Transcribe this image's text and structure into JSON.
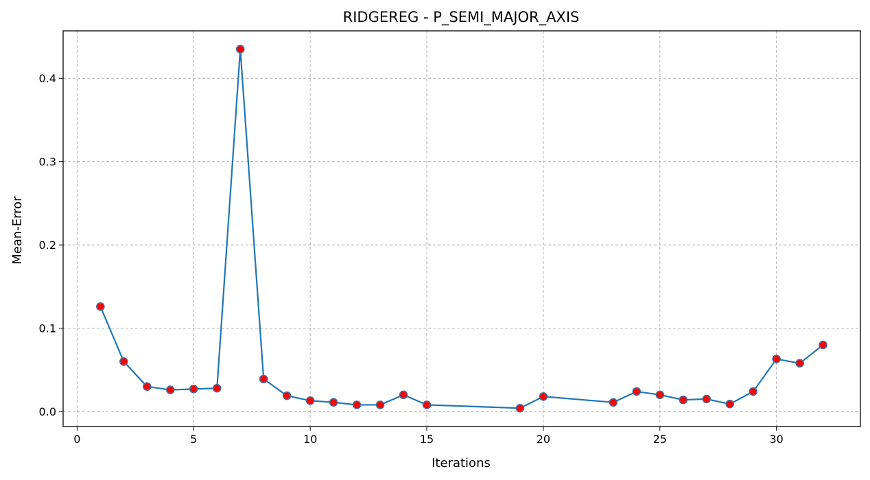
{
  "chart_data": {
    "type": "line",
    "title": "RIDGEREG - P_SEMI_MAJOR_AXIS",
    "xlabel": "Iterations",
    "ylabel": "Mean-Error",
    "xlim": [
      -0.6,
      33.6
    ],
    "ylim": [
      -0.018,
      0.457
    ],
    "xticks": [
      0,
      5,
      10,
      15,
      20,
      25,
      30
    ],
    "yticks": [
      0.0,
      0.1,
      0.2,
      0.3,
      0.4
    ],
    "ytick_labels": [
      "0.0",
      "0.1",
      "0.2",
      "0.3",
      "0.4"
    ],
    "grid": true,
    "line_color": "#1f77b4",
    "marker_face_color": "#ff0000",
    "marker_edge_color": "#4a6f9a",
    "series": [
      {
        "x": [
          1,
          2,
          3,
          4,
          5,
          6,
          7,
          8,
          9,
          10,
          11,
          12,
          13,
          14,
          15,
          19,
          20,
          23,
          24,
          25,
          26,
          27,
          28,
          29,
          30,
          31,
          32
        ],
        "values": [
          0.126,
          0.06,
          0.03,
          0.026,
          0.027,
          0.028,
          0.435,
          0.039,
          0.019,
          0.013,
          0.011,
          0.008,
          0.008,
          0.02,
          0.008,
          0.004,
          0.018,
          0.011,
          0.024,
          0.02,
          0.014,
          0.015,
          0.009,
          0.024,
          0.063,
          0.058,
          0.08
        ]
      }
    ]
  }
}
